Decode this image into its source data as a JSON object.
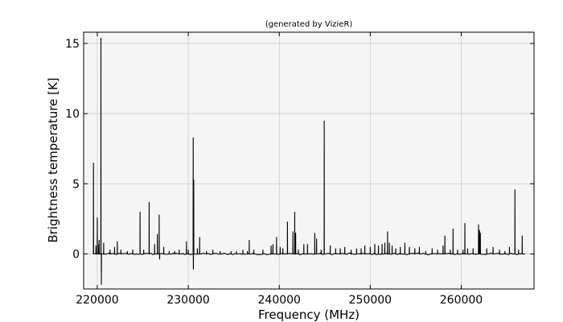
{
  "chart_data": {
    "type": "line",
    "title": "(generated by VizieR)",
    "xlabel": "Frequency (MHz)",
    "ylabel": "Brightness temperature [K]",
    "xlim": [
      218500,
      268000
    ],
    "ylim": [
      -2.5,
      15.8
    ],
    "x_ticks": [
      220000,
      230000,
      240000,
      250000,
      260000
    ],
    "y_ticks": [
      0,
      5,
      10,
      15
    ],
    "grid": true,
    "legend": "none",
    "colors": {
      "plot_background": "#f5f5f5",
      "line": "#000000",
      "grid": "#cccccc"
    },
    "x_range": [
      219700,
      267000
    ],
    "baseline": 0,
    "peaks": [
      [
        219580,
        6.5
      ],
      [
        219850,
        0.6
      ],
      [
        220000,
        2.6
      ],
      [
        220150,
        0.7
      ],
      [
        220200,
        1.0
      ],
      [
        220400,
        15.4
      ],
      [
        220450,
        -2.2
      ],
      [
        220700,
        0.8
      ],
      [
        221400,
        0.3
      ],
      [
        221900,
        0.5
      ],
      [
        222200,
        0.9
      ],
      [
        222600,
        0.3
      ],
      [
        223300,
        0.2
      ],
      [
        223900,
        0.3
      ],
      [
        224700,
        3.0
      ],
      [
        225100,
        0.3
      ],
      [
        225700,
        3.7
      ],
      [
        226300,
        0.7
      ],
      [
        226600,
        1.4
      ],
      [
        226800,
        2.8
      ],
      [
        226850,
        -0.4
      ],
      [
        227300,
        0.5
      ],
      [
        227900,
        0.2
      ],
      [
        228500,
        0.2
      ],
      [
        229000,
        0.3
      ],
      [
        229800,
        0.9
      ],
      [
        230000,
        0.3
      ],
      [
        230540,
        8.3
      ],
      [
        230560,
        -1.1
      ],
      [
        230600,
        5.3
      ],
      [
        231000,
        0.4
      ],
      [
        231250,
        1.2
      ],
      [
        232000,
        0.2
      ],
      [
        232700,
        0.3
      ],
      [
        233500,
        0.2
      ],
      [
        234700,
        0.2
      ],
      [
        235300,
        0.2
      ],
      [
        236000,
        0.3
      ],
      [
        236500,
        0.2
      ],
      [
        236700,
        1.0
      ],
      [
        237200,
        0.3
      ],
      [
        238200,
        0.3
      ],
      [
        239100,
        0.6
      ],
      [
        239300,
        0.7
      ],
      [
        239700,
        1.2
      ],
      [
        240100,
        0.5
      ],
      [
        240400,
        0.4
      ],
      [
        240900,
        2.3
      ],
      [
        241500,
        1.6
      ],
      [
        241700,
        3.0
      ],
      [
        241800,
        1.5
      ],
      [
        242100,
        0.3
      ],
      [
        242700,
        0.7
      ],
      [
        243100,
        0.7
      ],
      [
        243900,
        1.5
      ],
      [
        244100,
        1.1
      ],
      [
        244600,
        0.3
      ],
      [
        244940,
        9.5
      ],
      [
        245600,
        0.6
      ],
      [
        246200,
        0.4
      ],
      [
        246700,
        0.4
      ],
      [
        247200,
        0.5
      ],
      [
        247900,
        0.3
      ],
      [
        248500,
        0.4
      ],
      [
        249000,
        0.4
      ],
      [
        249400,
        0.6
      ],
      [
        250000,
        0.5
      ],
      [
        250500,
        0.7
      ],
      [
        250900,
        0.6
      ],
      [
        251300,
        0.7
      ],
      [
        251600,
        0.8
      ],
      [
        251900,
        1.6
      ],
      [
        252100,
        0.8
      ],
      [
        252400,
        0.6
      ],
      [
        252800,
        0.4
      ],
      [
        253300,
        0.5
      ],
      [
        253800,
        0.8
      ],
      [
        254300,
        0.5
      ],
      [
        254900,
        0.4
      ],
      [
        255400,
        0.5
      ],
      [
        256100,
        0.2
      ],
      [
        256800,
        0.4
      ],
      [
        257400,
        0.3
      ],
      [
        258000,
        0.6
      ],
      [
        258200,
        1.3
      ],
      [
        258800,
        0.3
      ],
      [
        259100,
        1.8
      ],
      [
        259600,
        0.3
      ],
      [
        260200,
        0.3
      ],
      [
        260400,
        2.2
      ],
      [
        260700,
        0.4
      ],
      [
        261300,
        0.4
      ],
      [
        261900,
        2.1
      ],
      [
        262000,
        1.7
      ],
      [
        262100,
        1.5
      ],
      [
        262800,
        0.4
      ],
      [
        263500,
        0.5
      ],
      [
        264200,
        0.3
      ],
      [
        264800,
        0.2
      ],
      [
        265300,
        0.5
      ],
      [
        265900,
        4.6
      ],
      [
        266300,
        0.3
      ],
      [
        266700,
        1.3
      ]
    ]
  }
}
